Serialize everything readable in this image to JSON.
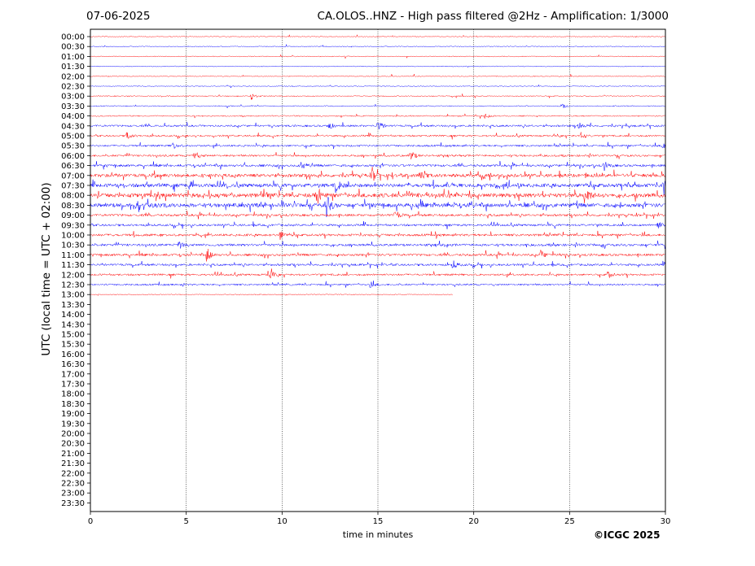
{
  "header": {
    "date": "07-06-2025",
    "title": "CA.OLOS..HNZ - High pass filtered @2Hz - Amplification: 1/3000"
  },
  "footer": {
    "copyright": "©ICGC 2025"
  },
  "chart_data": {
    "type": "line",
    "title": "CA.OLOS..HNZ - High pass filtered @2Hz - Amplification: 1/3000",
    "xlabel": "time in minutes",
    "ylabel": "UTC (local time = UTC + 02:00)",
    "xlim": [
      0,
      30
    ],
    "x_ticks": [
      0,
      5,
      10,
      15,
      20,
      25,
      30
    ],
    "row_labels": [
      "00:00",
      "00:30",
      "01:00",
      "01:30",
      "02:00",
      "02:30",
      "03:00",
      "03:30",
      "04:00",
      "04:30",
      "05:00",
      "05:30",
      "06:00",
      "06:30",
      "07:00",
      "07:30",
      "08:00",
      "08:30",
      "09:00",
      "09:30",
      "10:00",
      "10:30",
      "11:00",
      "11:30",
      "12:00",
      "12:30",
      "13:00",
      "13:30",
      "14:00",
      "14:30",
      "15:00",
      "15:30",
      "16:00",
      "16:30",
      "17:00",
      "17:30",
      "18:00",
      "18:30",
      "19:00",
      "19:30",
      "20:00",
      "20:30",
      "21:00",
      "21:30",
      "22:00",
      "22:30",
      "23:00",
      "23:30"
    ],
    "grid": "vertical dotted lines at x ticks",
    "trace_colors": [
      "#ff0000",
      "#0000ff"
    ],
    "trace_color_pattern": "alternating red/blue by row, starting red at 00:00",
    "recorded_rows": 27,
    "last_row_end_minute": 18.9,
    "activity_by_row": [
      0.05,
      0.05,
      0.05,
      0.05,
      0.05,
      0.05,
      0.1,
      0.1,
      0.15,
      0.35,
      0.3,
      0.35,
      0.35,
      0.45,
      0.7,
      0.8,
      0.9,
      0.85,
      0.45,
      0.4,
      0.45,
      0.45,
      0.45,
      0.4,
      0.35,
      0.3,
      0.05
    ],
    "events": [
      {
        "row": "03:00",
        "minute": 8.4,
        "amplitude": 0.5
      },
      {
        "row": "03:30",
        "minute": 24.6,
        "amplitude": 0.4
      },
      {
        "row": "04:00",
        "minute": 20.6,
        "amplitude": 0.6
      },
      {
        "row": "04:30",
        "minute": 12.4,
        "amplitude": 0.6
      },
      {
        "row": "04:30",
        "minute": 15.0,
        "amplitude": 0.8
      },
      {
        "row": "04:30",
        "minute": 25.5,
        "amplitude": 0.5
      },
      {
        "row": "05:00",
        "minute": 1.9,
        "amplitude": 0.5
      },
      {
        "row": "05:00",
        "minute": 25.6,
        "amplitude": 0.5
      },
      {
        "row": "05:30",
        "minute": 4.3,
        "amplitude": 0.5
      },
      {
        "row": "05:30",
        "minute": 29.9,
        "amplitude": 0.7
      },
      {
        "row": "06:00",
        "minute": 5.4,
        "amplitude": 0.8
      },
      {
        "row": "06:00",
        "minute": 16.7,
        "amplitude": 0.8
      },
      {
        "row": "06:30",
        "minute": 11.0,
        "amplitude": 0.6
      },
      {
        "row": "06:30",
        "minute": 26.8,
        "amplitude": 0.6
      },
      {
        "row": "07:00",
        "minute": 14.7,
        "amplitude": 1.0
      },
      {
        "row": "07:00",
        "minute": 17.2,
        "amplitude": 0.9
      },
      {
        "row": "07:30",
        "minute": 12.8,
        "amplitude": 0.9
      },
      {
        "row": "07:30",
        "minute": 29.9,
        "amplitude": 0.8
      },
      {
        "row": "08:00",
        "minute": 11.8,
        "amplitude": 1.0
      },
      {
        "row": "08:00",
        "minute": 25.8,
        "amplitude": 1.5
      },
      {
        "row": "08:30",
        "minute": 12.3,
        "amplitude": 1.7
      },
      {
        "row": "08:30",
        "minute": 2.5,
        "amplitude": 0.8
      },
      {
        "row": "09:00",
        "minute": 15.9,
        "amplitude": 0.6
      },
      {
        "row": "09:30",
        "minute": 29.6,
        "amplitude": 0.6
      },
      {
        "row": "10:00",
        "minute": 9.9,
        "amplitude": 0.6
      },
      {
        "row": "10:30",
        "minute": 4.6,
        "amplitude": 0.6
      },
      {
        "row": "11:00",
        "minute": 6.1,
        "amplitude": 0.9
      },
      {
        "row": "11:00",
        "minute": 23.5,
        "amplitude": 0.6
      },
      {
        "row": "11:30",
        "minute": 18.9,
        "amplitude": 0.6
      },
      {
        "row": "12:00",
        "minute": 9.3,
        "amplitude": 0.9
      },
      {
        "row": "12:00",
        "minute": 27.0,
        "amplitude": 0.5
      },
      {
        "row": "12:30",
        "minute": 14.6,
        "amplitude": 0.4
      }
    ]
  }
}
